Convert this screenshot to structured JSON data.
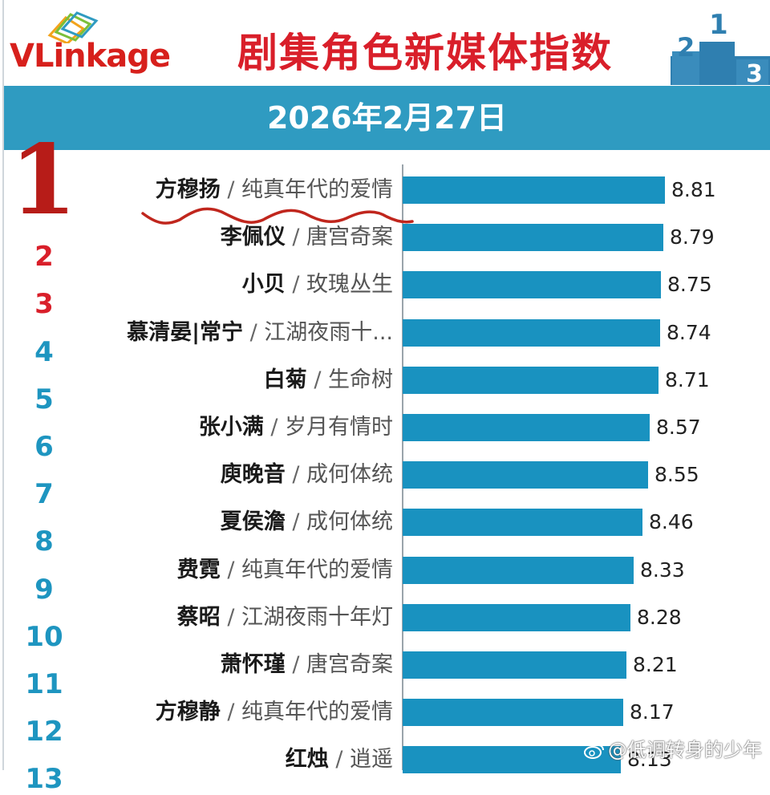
{
  "brand": {
    "logo_text_v": "VLink",
    "logo_text_rest": "age"
  },
  "title": "剧集角色新媒体指数",
  "date": "2026年2月27日",
  "colors": {
    "accent_red": "#d91f2a",
    "banner_blue": "#2f9bc1",
    "bar_blue": "#1992c0",
    "rank_blue": "#1e95c0"
  },
  "watermark": "@低调转身的少年",
  "chart_data": {
    "type": "bar",
    "orientation": "horizontal",
    "title": "剧集角色新媒体指数",
    "subtitle": "2026年2月27日",
    "entries": [
      {
        "rank": "1",
        "name": "方穆扬",
        "show": "纯真年代的爱情",
        "value": 8.81
      },
      {
        "rank": "2",
        "name": "李佩仪",
        "show": "唐宫奇案",
        "value": 8.79
      },
      {
        "rank": "3",
        "name": "小贝",
        "show": "玫瑰丛生",
        "value": 8.75
      },
      {
        "rank": "4",
        "name": "慕清晏|常宁",
        "show": "江湖夜雨十...",
        "value": 8.74
      },
      {
        "rank": "5",
        "name": "白菊",
        "show": "生命树",
        "value": 8.71
      },
      {
        "rank": "6",
        "name": "张小满",
        "show": "岁月有情时",
        "value": 8.57
      },
      {
        "rank": "7",
        "name": "庾晚音",
        "show": "成何体统",
        "value": 8.55
      },
      {
        "rank": "8",
        "name": "夏侯澹",
        "show": "成何体统",
        "value": 8.46
      },
      {
        "rank": "9",
        "name": "费霓",
        "show": "纯真年代的爱情",
        "value": 8.33
      },
      {
        "rank": "10",
        "name": "蔡昭",
        "show": "江湖夜雨十年灯",
        "value": 8.28
      },
      {
        "rank": "11",
        "name": "萧怀瑾",
        "show": "唐宫奇案",
        "value": 8.21
      },
      {
        "rank": "12",
        "name": "方穆静",
        "show": "纯真年代的爱情",
        "value": 8.17
      },
      {
        "rank": "13",
        "name": "红烛",
        "show": "逍遥",
        "value": 8.13
      }
    ],
    "value_labels": [
      "8.81",
      "8.79",
      "8.75",
      "8.74",
      "8.71",
      "8.57",
      "8.55",
      "8.46",
      "8.33",
      "8.28",
      "8.21",
      "8.17",
      "8.13"
    ]
  }
}
